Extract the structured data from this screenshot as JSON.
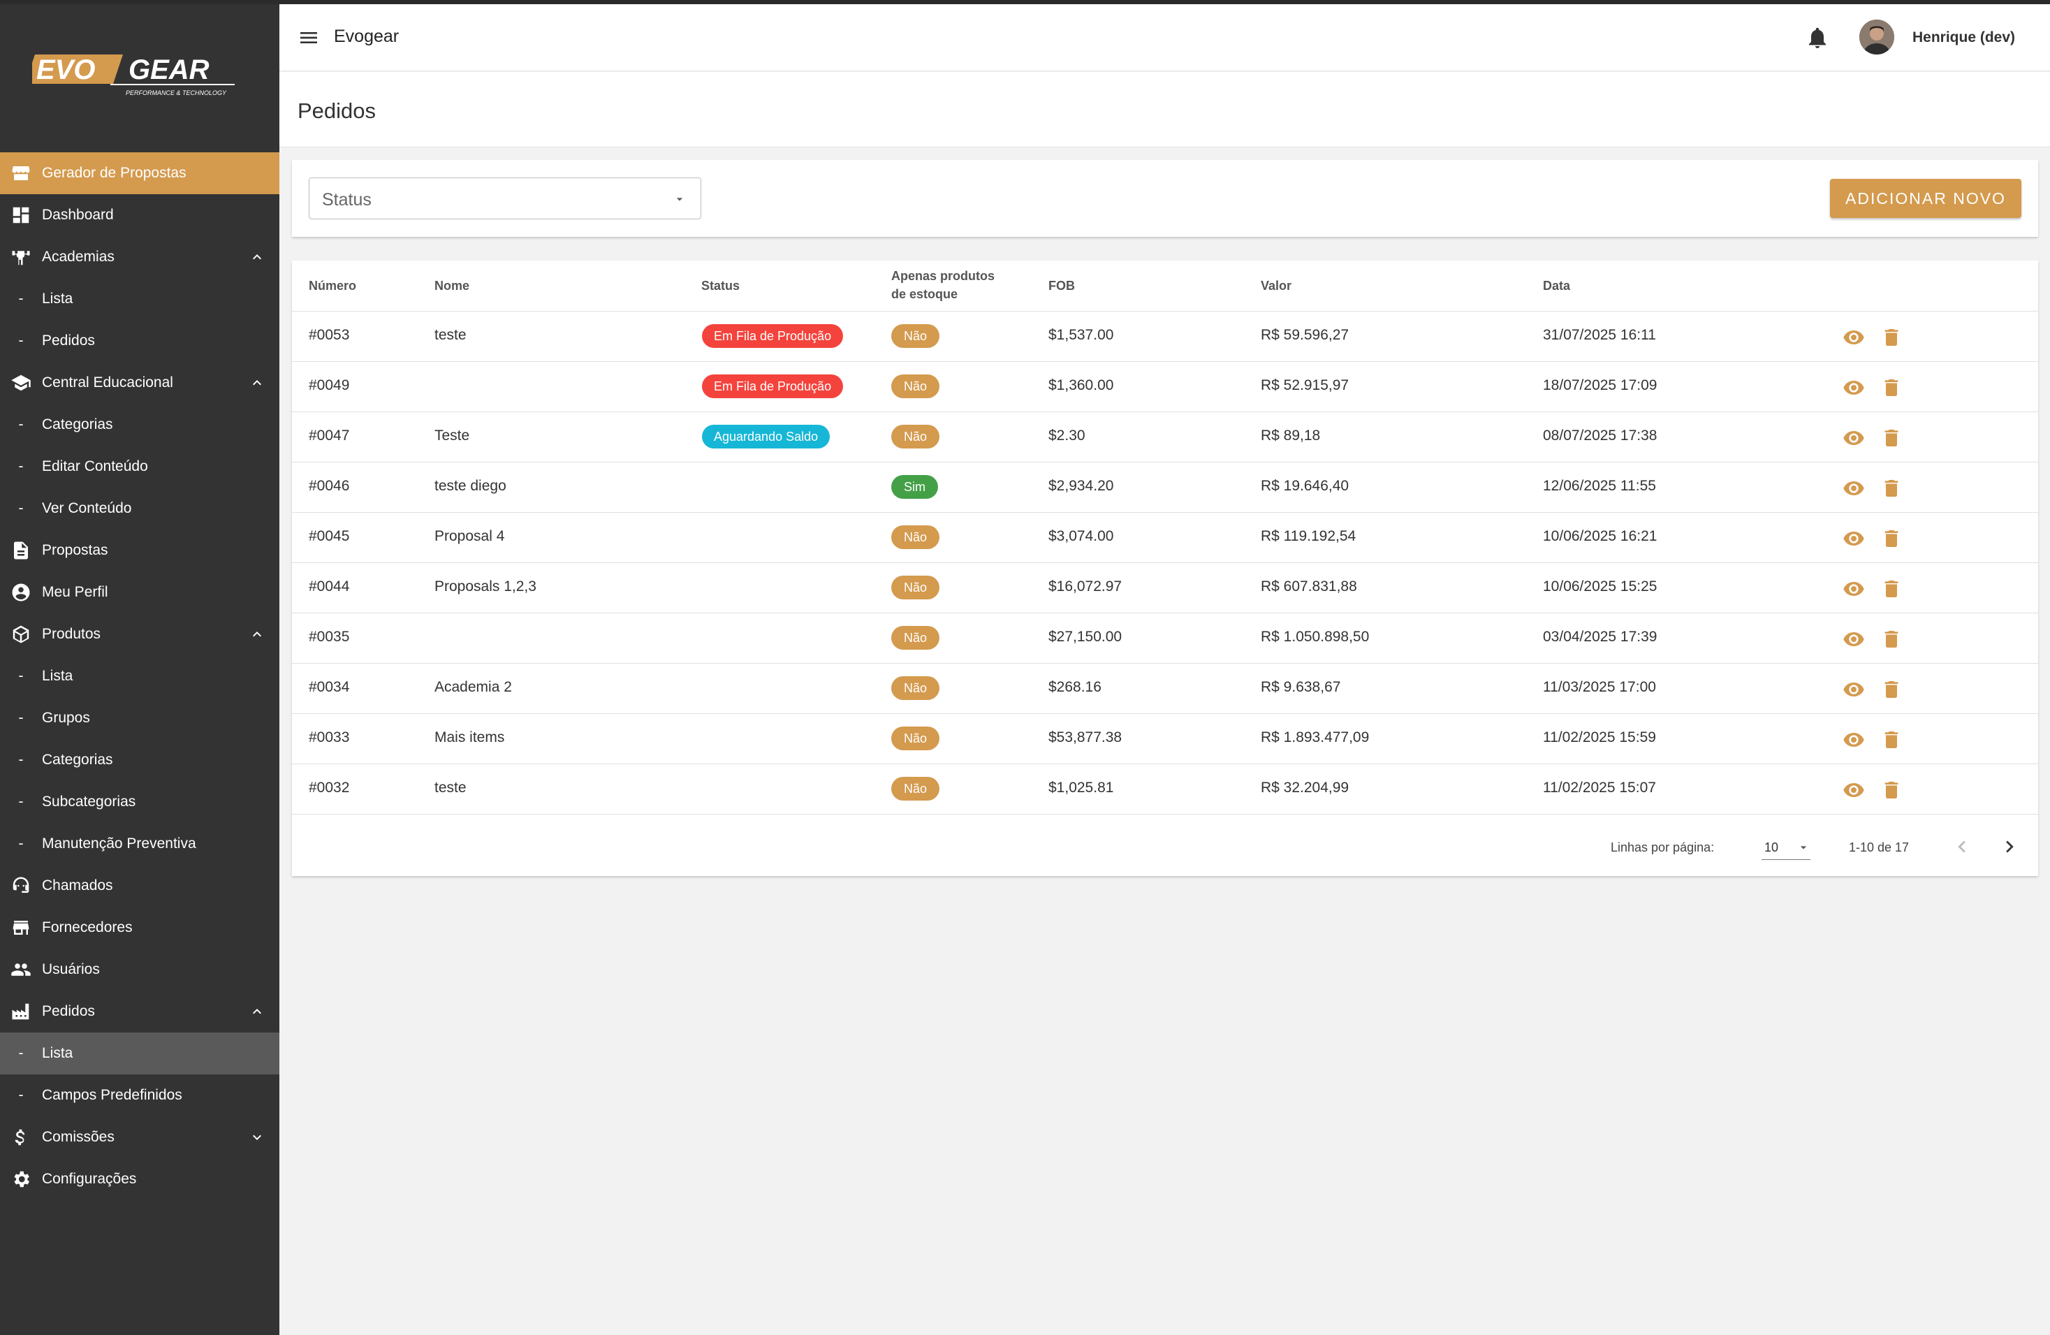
{
  "brand": {
    "logo_text": "EVOGEAR",
    "logo_tagline": "PERFORMANCE & TECHNOLOGY",
    "accent_color": "#d49a4e",
    "sidebar_color": "#333333"
  },
  "header": {
    "app_title": "Evogear",
    "user_name": "Henrique (dev)"
  },
  "page": {
    "title": "Pedidos"
  },
  "sidebar": {
    "items": [
      {
        "label": "Gerador de Propostas",
        "icon": "storefront-icon"
      },
      {
        "label": "Dashboard",
        "icon": "dashboard-icon"
      },
      {
        "label": "Academias",
        "icon": "fitness-icon"
      },
      {
        "label": "Lista"
      },
      {
        "label": "Pedidos"
      },
      {
        "label": "Central Educacional",
        "icon": "school-icon"
      },
      {
        "label": "Categorias"
      },
      {
        "label": "Editar Conteúdo"
      },
      {
        "label": "Ver Conteúdo"
      },
      {
        "label": "Propostas",
        "icon": "document-icon"
      },
      {
        "label": "Meu Perfil",
        "icon": "account-circle-icon"
      },
      {
        "label": "Produtos",
        "icon": "package-icon"
      },
      {
        "label": "Lista"
      },
      {
        "label": "Grupos"
      },
      {
        "label": "Categorias"
      },
      {
        "label": "Subcategorias"
      },
      {
        "label": "Manutenção Preventiva"
      },
      {
        "label": "Chamados",
        "icon": "support-agent-icon"
      },
      {
        "label": "Fornecedores",
        "icon": "store-icon"
      },
      {
        "label": "Usuários",
        "icon": "people-icon"
      },
      {
        "label": "Pedidos",
        "icon": "factory-icon"
      },
      {
        "label": "Lista"
      },
      {
        "label": "Campos Predefinidos"
      },
      {
        "label": "Comissões",
        "icon": "dollar-icon"
      },
      {
        "label": "Configurações",
        "icon": "gear-icon"
      }
    ]
  },
  "filter": {
    "status_placeholder": "Status",
    "add_button": "ADICIONAR NOVO"
  },
  "table": {
    "columns": {
      "numero": "Número",
      "nome": "Nome",
      "status": "Status",
      "apenas_line1": "Apenas produtos",
      "apenas_line2": "de estoque",
      "fob": "FOB",
      "valor": "Valor",
      "data": "Data"
    },
    "rows": [
      {
        "numero": "#0053",
        "nome": "teste",
        "status": "Em Fila de Produção",
        "estoque": "Não",
        "fob": "$1,537.00",
        "valor": "R$ 59.596,27",
        "data": "31/07/2025 16:11"
      },
      {
        "numero": "#0049",
        "nome": "",
        "status": "Em Fila de Produção",
        "estoque": "Não",
        "fob": "$1,360.00",
        "valor": "R$ 52.915,97",
        "data": "18/07/2025 17:09"
      },
      {
        "numero": "#0047",
        "nome": "Teste",
        "status": "Aguardando Saldo",
        "estoque": "Não",
        "fob": "$2.30",
        "valor": "R$ 89,18",
        "data": "08/07/2025 17:38"
      },
      {
        "numero": "#0046",
        "nome": "teste diego",
        "status": "",
        "estoque": "Sim",
        "fob": "$2,934.20",
        "valor": "R$ 19.646,40",
        "data": "12/06/2025 11:55"
      },
      {
        "numero": "#0045",
        "nome": "Proposal 4",
        "status": "",
        "estoque": "Não",
        "fob": "$3,074.00",
        "valor": "R$ 119.192,54",
        "data": "10/06/2025 16:21"
      },
      {
        "numero": "#0044",
        "nome": "Proposals 1,2,3",
        "status": "",
        "estoque": "Não",
        "fob": "$16,072.97",
        "valor": "R$ 607.831,88",
        "data": "10/06/2025 15:25"
      },
      {
        "numero": "#0035",
        "nome": "",
        "status": "",
        "estoque": "Não",
        "fob": "$27,150.00",
        "valor": "R$ 1.050.898,50",
        "data": "03/04/2025 17:39"
      },
      {
        "numero": "#0034",
        "nome": "Academia 2",
        "status": "",
        "estoque": "Não",
        "fob": "$268.16",
        "valor": "R$ 9.638,67",
        "data": "11/03/2025 17:00"
      },
      {
        "numero": "#0033",
        "nome": "Mais items",
        "status": "",
        "estoque": "Não",
        "fob": "$53,877.38",
        "valor": "R$ 1.893.477,09",
        "data": "11/02/2025 15:59"
      },
      {
        "numero": "#0032",
        "nome": "teste",
        "status": "",
        "estoque": "Não",
        "fob": "$1,025.81",
        "valor": "R$ 32.204,99",
        "data": "11/02/2025 15:07"
      }
    ]
  },
  "pagination": {
    "rows_label": "Linhas por página:",
    "rows_per_page": "10",
    "range": "1-10 de 17"
  },
  "status_colors": {
    "Em Fila de Produção": "#f4433c",
    "Aguardando Saldo": "#16b7d6",
    "Sim": "#43a047",
    "Não": "#d49a4e"
  }
}
